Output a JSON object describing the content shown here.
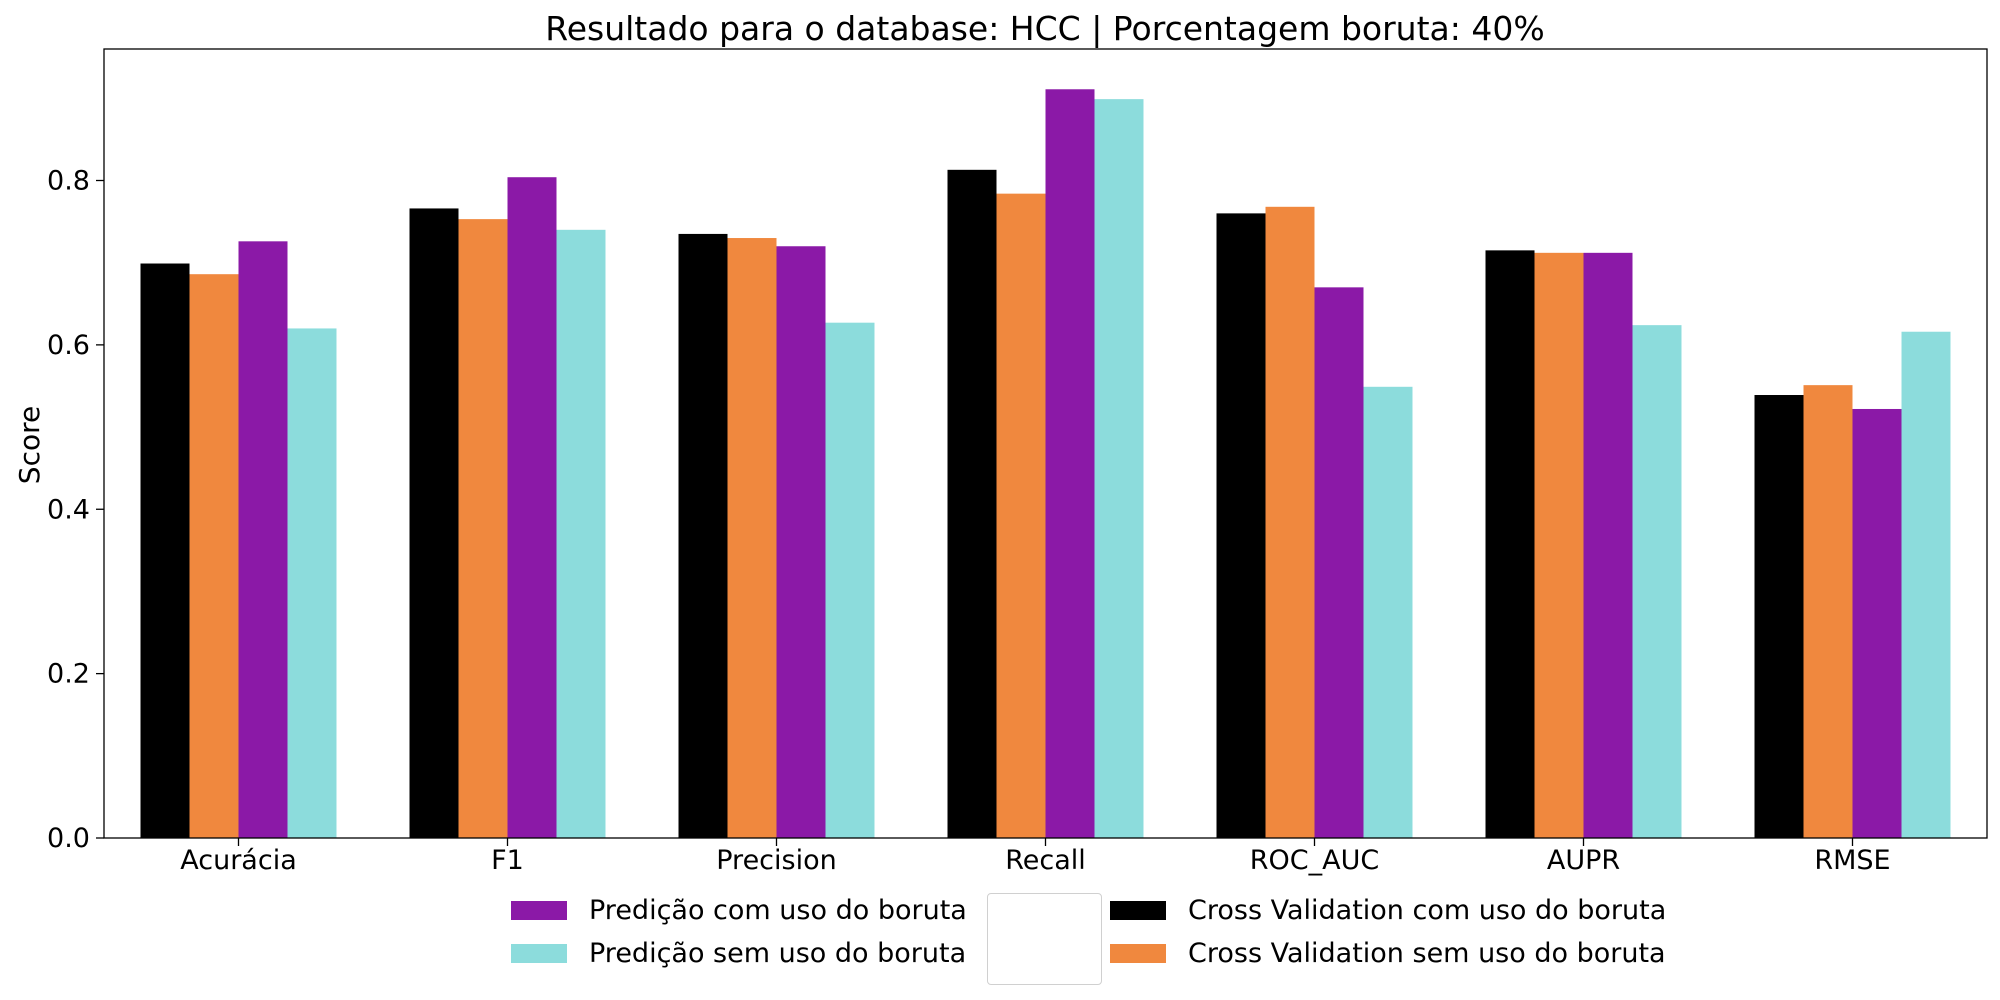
{
  "chart_data": {
    "type": "bar",
    "title": "Resultado para o database: HCC | Porcentagem boruta: 40%",
    "xlabel": "",
    "ylabel": "Score",
    "ylim": [
      0,
      0.96
    ],
    "yticks": [
      "0.0",
      "0.2",
      "0.4",
      "0.6",
      "0.8"
    ],
    "categories": [
      "Acurácia",
      "F1",
      "Precision",
      "Recall",
      "ROC_AUC",
      "AUPR",
      "RMSE"
    ],
    "grid": false,
    "series": [
      {
        "name": "Cross Validation com uso do boruta",
        "color": "#000000",
        "values": [
          0.699,
          0.766,
          0.735,
          0.813,
          0.76,
          0.715,
          0.539
        ]
      },
      {
        "name": "Cross Validation sem uso do boruta",
        "color": "#F0883E",
        "values": [
          0.686,
          0.753,
          0.73,
          0.784,
          0.768,
          0.712,
          0.551
        ]
      },
      {
        "name": "Predição com uso do boruta",
        "color": "#8B19A7",
        "values": [
          0.726,
          0.804,
          0.72,
          0.911,
          0.67,
          0.712,
          0.522
        ]
      },
      {
        "name": "Predição sem uso do boruta",
        "color": "#8CDCDC",
        "values": [
          0.62,
          0.74,
          0.627,
          0.899,
          0.549,
          0.624,
          0.616
        ]
      }
    ],
    "legend": {
      "placement": "bottom",
      "left": [
        {
          "label": "Predição com uso do boruta",
          "color": "#8B19A7"
        },
        {
          "label": "Predição sem uso do boruta",
          "color": "#8CDCDC"
        }
      ],
      "right": [
        {
          "label": "Cross Validation com uso do boruta",
          "color": "#000000"
        },
        {
          "label": "Cross Validation sem uso do boruta",
          "color": "#F0883E"
        }
      ]
    }
  }
}
